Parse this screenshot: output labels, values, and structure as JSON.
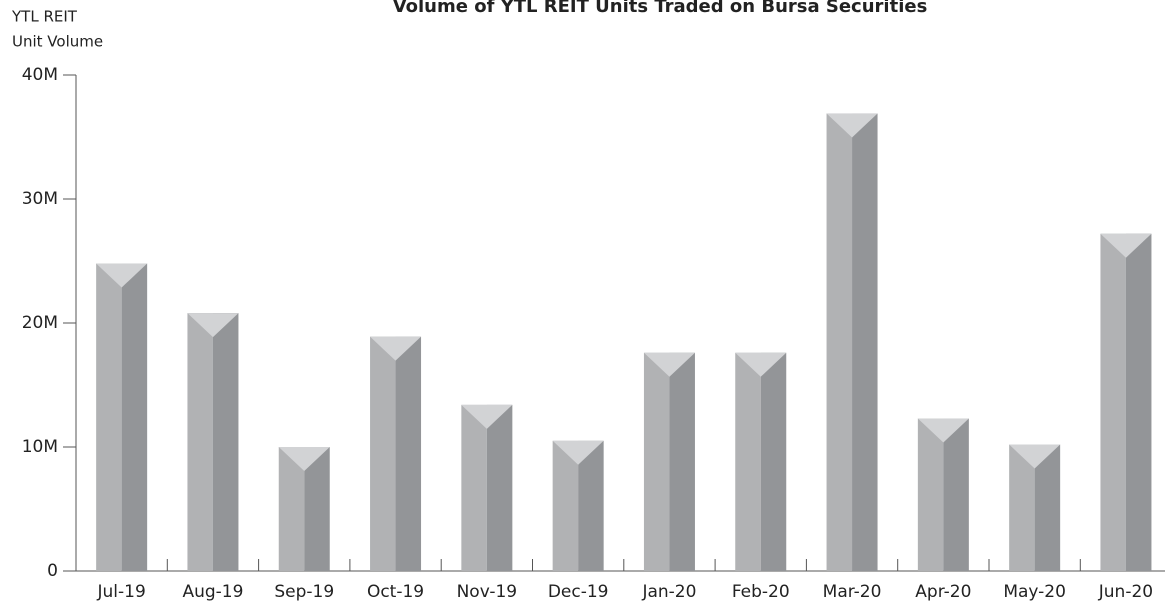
{
  "chart_data": {
    "type": "bar3d",
    "title": "Volume of YTL REIT Units Traded on Bursa Securities",
    "y_label": [
      "YTL REIT",
      "Unit Volume"
    ],
    "categories": [
      "Jul-19",
      "Aug-19",
      "Sep-19",
      "Oct-19",
      "Nov-19",
      "Dec-19",
      "Jan-20",
      "Feb-20",
      "Mar-20",
      "Apr-20",
      "May-20",
      "Jun-20"
    ],
    "values": [
      24800000,
      20800000,
      10000000,
      18900000,
      13400000,
      10500000,
      17600000,
      17600000,
      36900000,
      12300000,
      10200000,
      27200000
    ],
    "colors": {
      "left": "#b1b2b4",
      "right": "#939598",
      "top": "#d2d3d5"
    },
    "ylim": [
      0,
      40000000
    ],
    "yticks": [
      0,
      {
        "value": 10000000,
        "label": "10M"
      },
      {
        "value": 20000000,
        "label": "20M"
      },
      {
        "value": 30000000,
        "label": "30M"
      },
      {
        "value": 40000000,
        "label": "40M"
      }
    ],
    "grid": false
  }
}
